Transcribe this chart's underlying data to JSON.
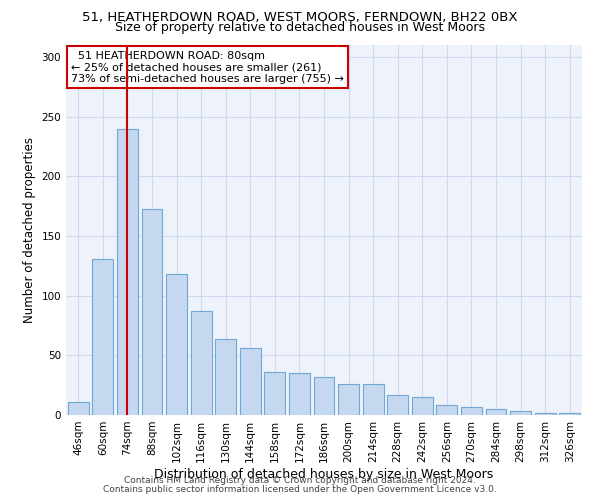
{
  "title1": "51, HEATHERDOWN ROAD, WEST MOORS, FERNDOWN, BH22 0BX",
  "title2": "Size of property relative to detached houses in West Moors",
  "xlabel": "Distribution of detached houses by size in West Moors",
  "ylabel": "Number of detached properties",
  "categories": [
    "46sqm",
    "60sqm",
    "74sqm",
    "88sqm",
    "102sqm",
    "116sqm",
    "130sqm",
    "144sqm",
    "158sqm",
    "172sqm",
    "186sqm",
    "200sqm",
    "214sqm",
    "228sqm",
    "242sqm",
    "256sqm",
    "270sqm",
    "284sqm",
    "298sqm",
    "312sqm",
    "326sqm"
  ],
  "values": [
    11,
    131,
    240,
    173,
    118,
    87,
    64,
    56,
    36,
    35,
    32,
    26,
    26,
    17,
    15,
    8,
    7,
    5,
    3,
    2,
    2
  ],
  "bar_color": "#c5d8f0",
  "bar_edge_color": "#6fa8d6",
  "vline_x": 2.0,
  "vline_color": "#cc0000",
  "annotation_text": "  51 HEATHERDOWN ROAD: 80sqm\n← 25% of detached houses are smaller (261)\n73% of semi-detached houses are larger (755) →",
  "annotation_box_color": "white",
  "annotation_box_edge": "#cc0000",
  "ylim": [
    0,
    310
  ],
  "yticks": [
    0,
    50,
    100,
    150,
    200,
    250,
    300
  ],
  "footer1": "Contains HM Land Registry data © Crown copyright and database right 2024.",
  "footer2": "Contains public sector information licensed under the Open Government Licence v3.0.",
  "bg_color": "#eef2fb",
  "grid_color": "#d0d8ee",
  "title_fontsize": 9.5,
  "subtitle_fontsize": 9,
  "tick_fontsize": 7.5,
  "ylabel_fontsize": 8.5,
  "xlabel_fontsize": 9,
  "footer_fontsize": 6.5
}
